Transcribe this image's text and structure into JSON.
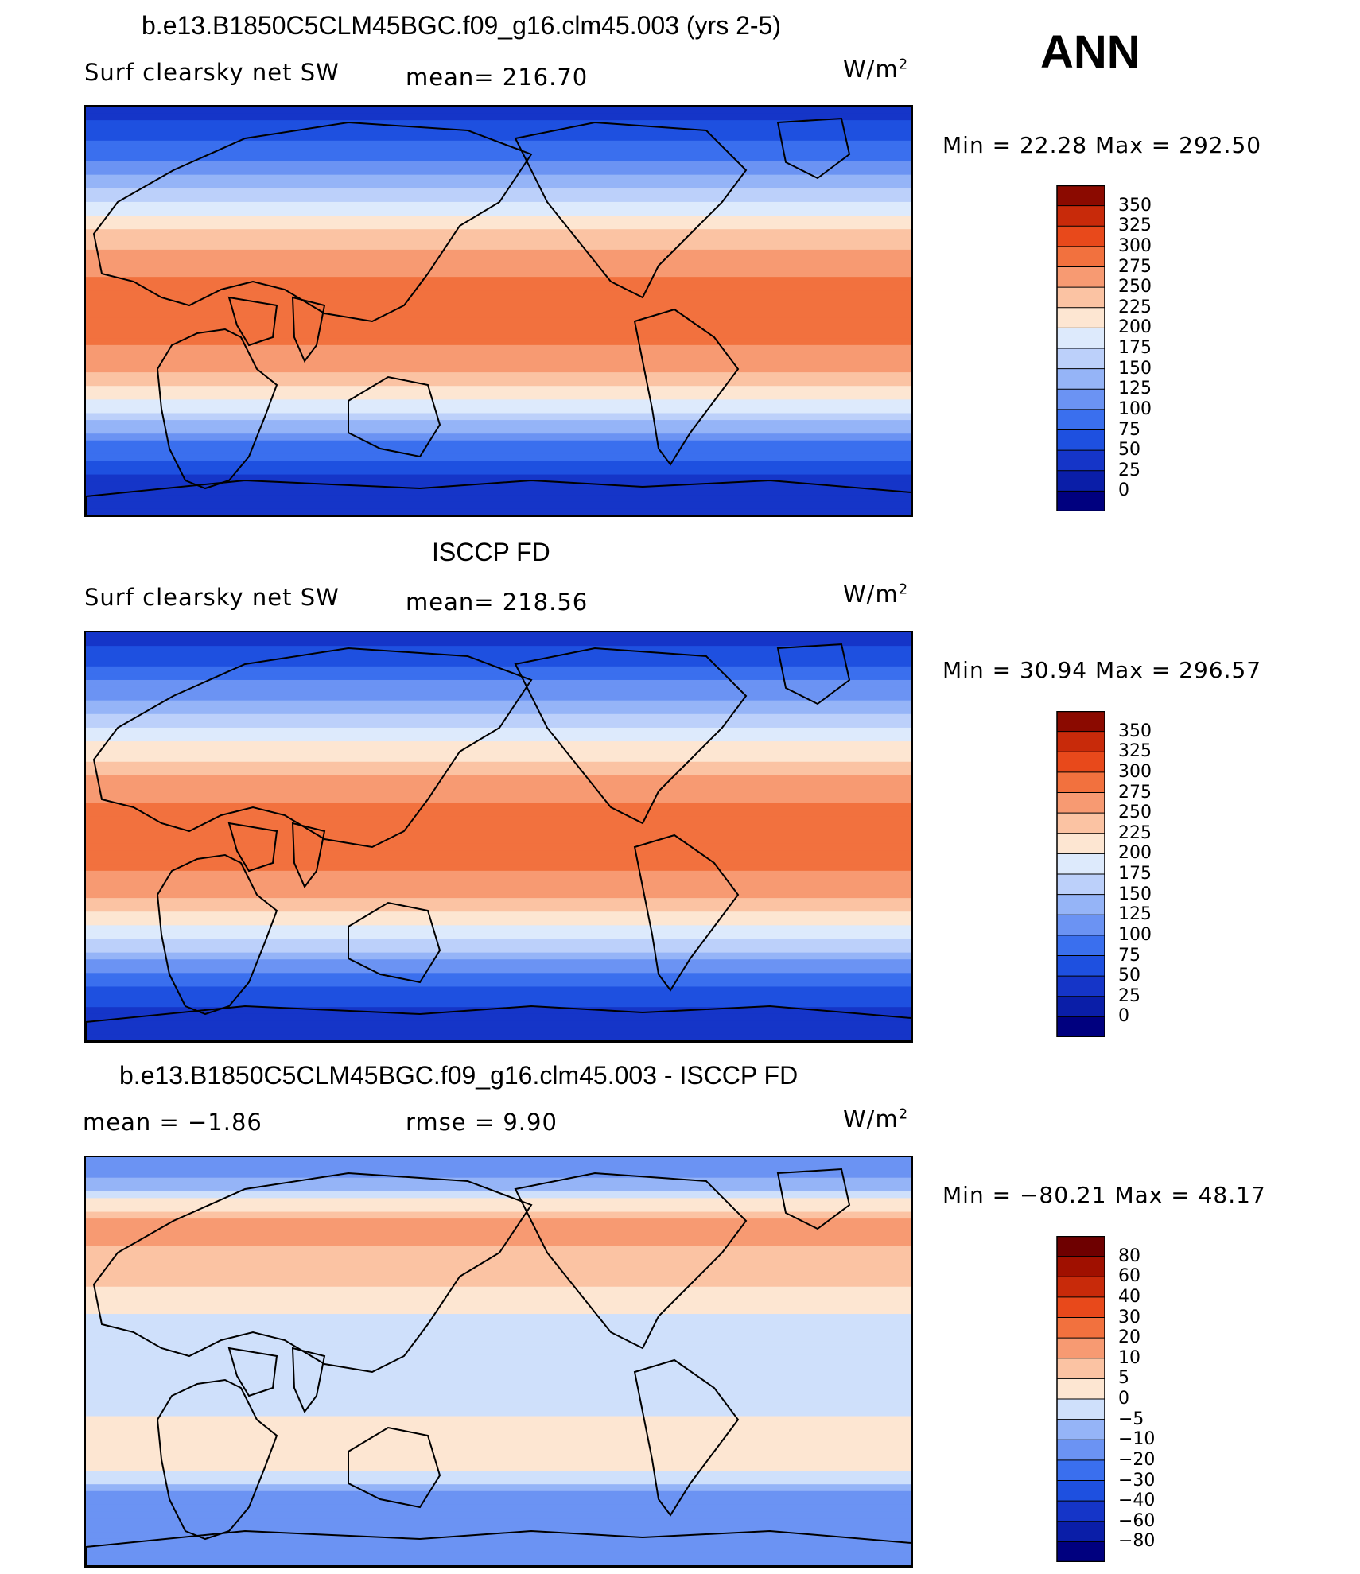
{
  "page": {
    "season": "ANN"
  },
  "panels": [
    {
      "title": "b.e13.B1850C5CLM45BGC.f09_g16.clm45.003 (yrs 2-5)",
      "left_label": "Surf clearsky net SW",
      "center_label": "mean= 216.70",
      "units_base": "W/m",
      "units_exp": "2",
      "minmax": "Min =   22.28 Max = 292.50"
    },
    {
      "title": "ISCCP FD",
      "left_label": "Surf clearsky net SW",
      "center_label": "mean= 218.56",
      "units_base": "W/m",
      "units_exp": "2",
      "minmax": "Min =   30.94 Max = 296.57"
    },
    {
      "title": "b.e13.B1850C5CLM45BGC.f09_g16.clm45.003 - ISCCP FD",
      "left_label": "mean =   −1.86",
      "center_label": "rmse =     9.90",
      "units_base": "W/m",
      "units_exp": "2",
      "minmax": "Min = −80.21 Max =   48.17"
    }
  ],
  "chart_data": [
    {
      "type": "heatmap",
      "title": "b.e13.B1850C5CLM45BGC.f09_g16.clm45.003 (yrs 2-5)",
      "variable": "Surf clearsky net SW",
      "units": "W/m2",
      "mean": 216.7,
      "min": 22.28,
      "max": 292.5,
      "levels": [
        0,
        25,
        50,
        75,
        100,
        125,
        150,
        175,
        200,
        225,
        250,
        275,
        300,
        325,
        350
      ],
      "colors": [
        "#00007f",
        "#0a1ea8",
        "#1535c8",
        "#1e50e0",
        "#3a6fee",
        "#6b93f3",
        "#95b4f7",
        "#bcd0fa",
        "#ddeafc",
        "#fde6d2",
        "#fbc3a3",
        "#f79a72",
        "#f2713e",
        "#e8491b",
        "#c82a0a",
        "#8b0a00"
      ],
      "zonal_profile_lat": [
        90,
        75,
        60,
        45,
        30,
        15,
        0,
        -15,
        -30,
        -45,
        -60,
        -75,
        -90
      ],
      "zonal_profile_value": [
        30,
        70,
        120,
        190,
        245,
        275,
        280,
        275,
        240,
        170,
        90,
        40,
        25
      ]
    },
    {
      "type": "heatmap",
      "title": "ISCCP FD",
      "variable": "Surf clearsky net SW",
      "units": "W/m2",
      "mean": 218.56,
      "min": 30.94,
      "max": 296.57,
      "levels": [
        0,
        25,
        50,
        75,
        100,
        125,
        150,
        175,
        200,
        225,
        250,
        275,
        300,
        325,
        350
      ],
      "colors": [
        "#00007f",
        "#0a1ea8",
        "#1535c8",
        "#1e50e0",
        "#3a6fee",
        "#6b93f3",
        "#95b4f7",
        "#bcd0fa",
        "#ddeafc",
        "#fde6d2",
        "#fbc3a3",
        "#f79a72",
        "#f2713e",
        "#e8491b",
        "#c82a0a",
        "#8b0a00"
      ],
      "zonal_profile_lat": [
        90,
        75,
        60,
        45,
        30,
        15,
        0,
        -15,
        -30,
        -45,
        -60,
        -75,
        -90
      ],
      "zonal_profile_value": [
        35,
        75,
        125,
        185,
        240,
        275,
        282,
        275,
        245,
        175,
        95,
        45,
        30
      ]
    },
    {
      "type": "heatmap",
      "title": "b.e13.B1850C5CLM45BGC.f09_g16.clm45.003 - ISCCP FD",
      "variable": "difference",
      "units": "W/m2",
      "mean": -1.86,
      "rmse": 9.9,
      "min": -80.21,
      "max": 48.17,
      "levels": [
        -80,
        -60,
        -40,
        -30,
        -20,
        -10,
        -5,
        0,
        5,
        10,
        20,
        30,
        40,
        60,
        80
      ],
      "level_labels": [
        "−80",
        "−60",
        "−40",
        "−30",
        "−20",
        "−10",
        "−5",
        "0",
        "5",
        "10",
        "20",
        "30",
        "40",
        "60",
        "80"
      ],
      "colors": [
        "#00007f",
        "#0a1ea8",
        "#1535c8",
        "#1e50e0",
        "#3a6fee",
        "#6b93f3",
        "#95b4f7",
        "#cfe0fb",
        "#fde6d2",
        "#fbc3a3",
        "#f79a72",
        "#f2713e",
        "#e8491b",
        "#c82a0a",
        "#a01000",
        "#6e0000"
      ],
      "zonal_profile_lat": [
        90,
        75,
        60,
        45,
        30,
        15,
        0,
        -15,
        -30,
        -45,
        -60,
        -75,
        -90
      ],
      "zonal_profile_value": [
        -20,
        -5,
        12,
        8,
        4,
        -3,
        -4,
        -3,
        2,
        5,
        -15,
        -10,
        -20
      ]
    }
  ]
}
